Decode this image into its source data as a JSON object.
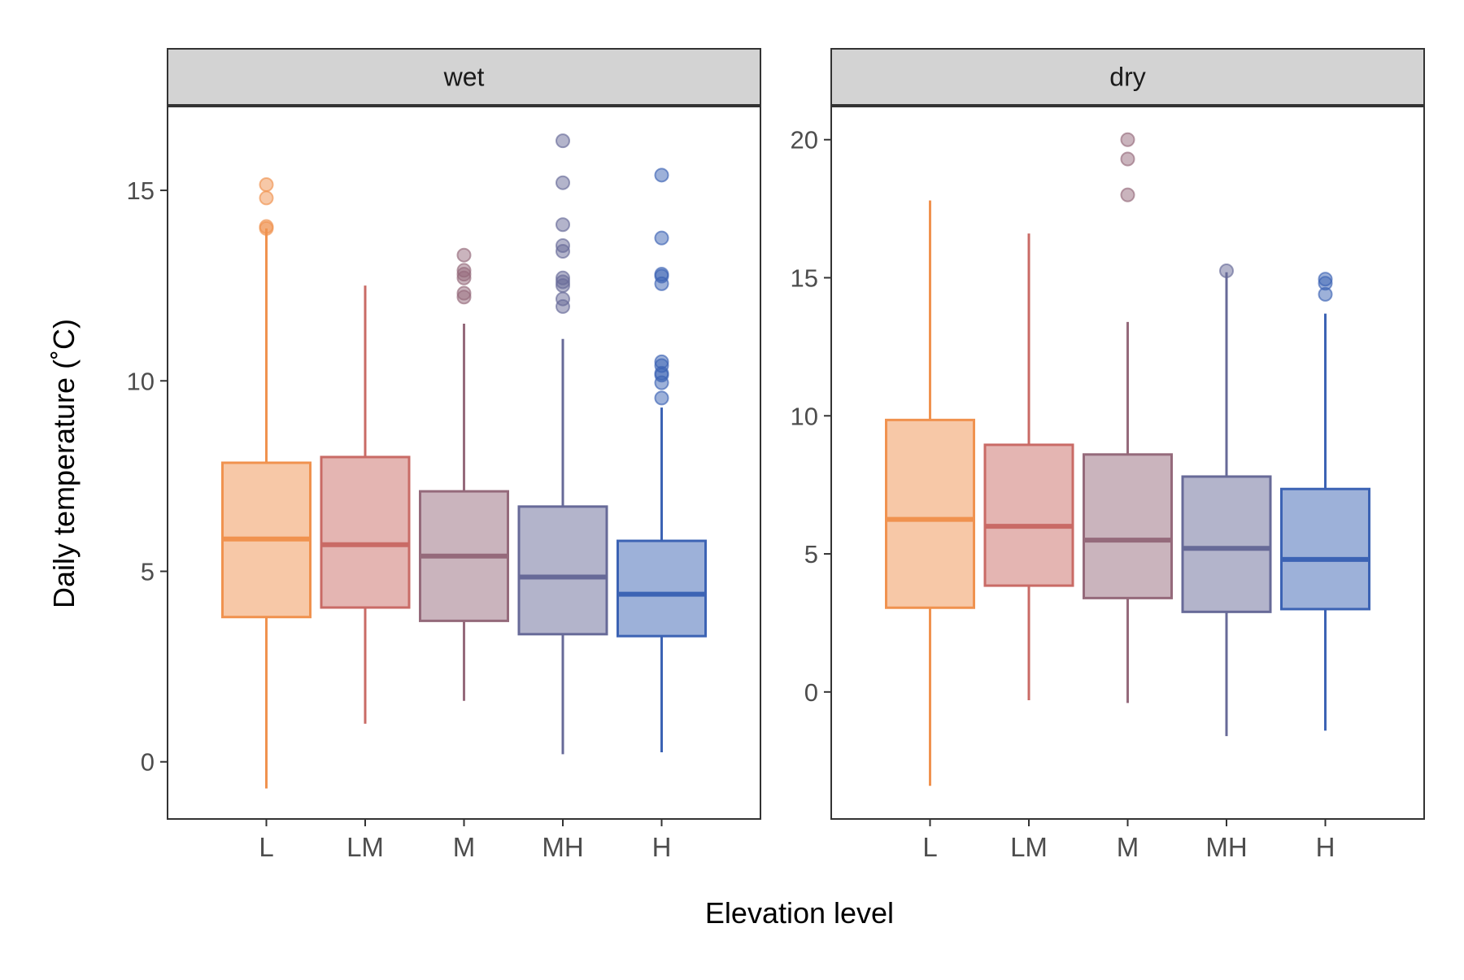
{
  "chart_data": {
    "type": "boxplot",
    "xlabel": "Elevation level",
    "ylabel": "Daily temperature (˚C)",
    "categories": [
      "L",
      "LM",
      "M",
      "MH",
      "H"
    ],
    "colors": {
      "L": "#f0924f",
      "LM": "#c96b66",
      "M": "#956a7b",
      "MH": "#676a98",
      "H": "#3c63b4"
    },
    "panel_strip_fill": "#d3d3d3",
    "grid": false,
    "panels": [
      {
        "strip": "wet",
        "ylim": [
          -1.5,
          17.2
        ],
        "yticks": [
          0,
          5,
          10,
          15
        ],
        "boxes": [
          {
            "category": "L",
            "whisker_low": -0.7,
            "q1": 3.8,
            "median": 5.85,
            "q3": 7.85,
            "whisker_high": 14.0,
            "outliers": [
              14.0,
              14.05,
              14.8,
              15.15
            ]
          },
          {
            "category": "LM",
            "whisker_low": 1.0,
            "q1": 4.05,
            "median": 5.7,
            "q3": 8.0,
            "whisker_high": 12.5,
            "outliers": []
          },
          {
            "category": "M",
            "whisker_low": 1.6,
            "q1": 3.7,
            "median": 5.4,
            "q3": 7.1,
            "whisker_high": 11.5,
            "outliers": [
              12.2,
              12.3,
              12.7,
              12.8,
              12.9,
              13.3
            ]
          },
          {
            "category": "MH",
            "whisker_low": 0.2,
            "q1": 3.35,
            "median": 4.85,
            "q3": 6.7,
            "whisker_high": 11.1,
            "outliers": [
              11.95,
              12.15,
              12.5,
              12.6,
              12.7,
              13.4,
              13.55,
              14.1,
              15.2,
              16.3
            ]
          },
          {
            "category": "H",
            "whisker_low": 0.25,
            "q1": 3.3,
            "median": 4.4,
            "q3": 5.8,
            "whisker_high": 9.3,
            "outliers": [
              9.55,
              9.95,
              10.15,
              10.2,
              10.4,
              10.5,
              12.55,
              12.75,
              12.8,
              13.75,
              15.4
            ]
          }
        ]
      },
      {
        "strip": "dry",
        "ylim": [
          -4.6,
          21.2
        ],
        "yticks": [
          0,
          5,
          10,
          15,
          20
        ],
        "boxes": [
          {
            "category": "L",
            "whisker_low": -3.4,
            "q1": 3.05,
            "median": 6.25,
            "q3": 9.85,
            "whisker_high": 17.8,
            "outliers": []
          },
          {
            "category": "LM",
            "whisker_low": -0.3,
            "q1": 3.85,
            "median": 6.0,
            "q3": 8.95,
            "whisker_high": 16.6,
            "outliers": []
          },
          {
            "category": "M",
            "whisker_low": -0.4,
            "q1": 3.4,
            "median": 5.5,
            "q3": 8.6,
            "whisker_high": 13.4,
            "outliers": [
              18.0,
              19.3,
              20.0
            ]
          },
          {
            "category": "MH",
            "whisker_low": -1.6,
            "q1": 2.9,
            "median": 5.2,
            "q3": 7.8,
            "whisker_high": 15.2,
            "outliers": [
              15.25
            ]
          },
          {
            "category": "H",
            "whisker_low": -1.4,
            "q1": 3.0,
            "median": 4.8,
            "q3": 7.35,
            "whisker_high": 13.7,
            "outliers": [
              14.4,
              14.8,
              14.95
            ]
          }
        ]
      }
    ]
  }
}
